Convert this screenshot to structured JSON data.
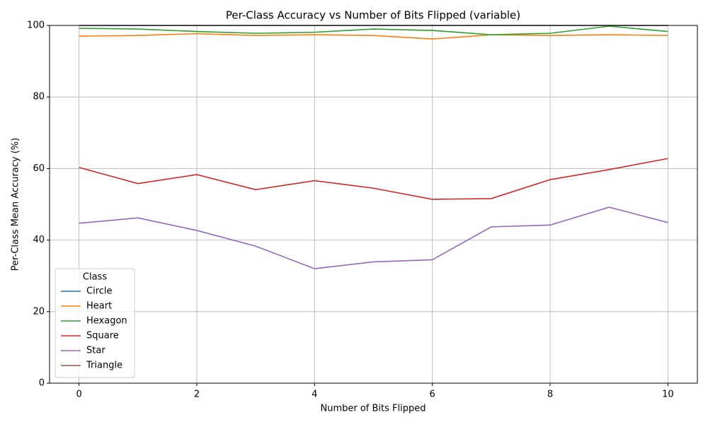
{
  "chart_data": {
    "type": "line",
    "title": "Per-Class Accuracy vs Number of Bits Flipped (variable)",
    "x_label": "Number of Bits Flipped",
    "y_label": "Per-Class Mean Accuracy (%)",
    "x": [
      0,
      1,
      2,
      3,
      4,
      5,
      6,
      7,
      8,
      9,
      10
    ],
    "series": [
      {
        "name": "Circle",
        "color": "#1f77b4",
        "values": [
          100,
          100,
          100,
          100,
          100,
          100,
          100,
          100,
          100,
          100,
          100
        ]
      },
      {
        "name": "Heart",
        "color": "#ff7f0e",
        "values": [
          97.0,
          97.2,
          97.7,
          97.2,
          97.4,
          97.2,
          96.2,
          97.4,
          97.2,
          97.4,
          97.2
        ]
      },
      {
        "name": "Hexagon",
        "color": "#2ca02c",
        "values": [
          99.2,
          99.0,
          98.3,
          97.8,
          98.1,
          99.0,
          98.6,
          97.4,
          97.8,
          99.8,
          98.3
        ]
      },
      {
        "name": "Square",
        "color": "#d62728",
        "values": [
          60.3,
          55.8,
          58.3,
          54.1,
          56.6,
          54.5,
          51.4,
          51.6,
          56.9,
          59.7,
          62.8
        ]
      },
      {
        "name": "Star",
        "color": "#9467bd",
        "values": [
          44.7,
          46.2,
          42.7,
          38.3,
          32.0,
          33.9,
          34.5,
          43.7,
          44.2,
          49.2,
          44.9
        ]
      },
      {
        "name": "Triangle",
        "color": "#8c564b",
        "values": [
          100,
          100,
          100,
          100,
          100,
          100,
          100,
          100,
          100,
          100,
          100
        ]
      }
    ],
    "legend_title": "Class",
    "legend": "lower left",
    "xlim": [
      -0.5,
      10.5
    ],
    "xticks": [
      0,
      2,
      4,
      6,
      8,
      10
    ],
    "ylim": [
      0,
      100
    ],
    "yticks": [
      0,
      20,
      40,
      60,
      80,
      100
    ],
    "grid": true
  }
}
